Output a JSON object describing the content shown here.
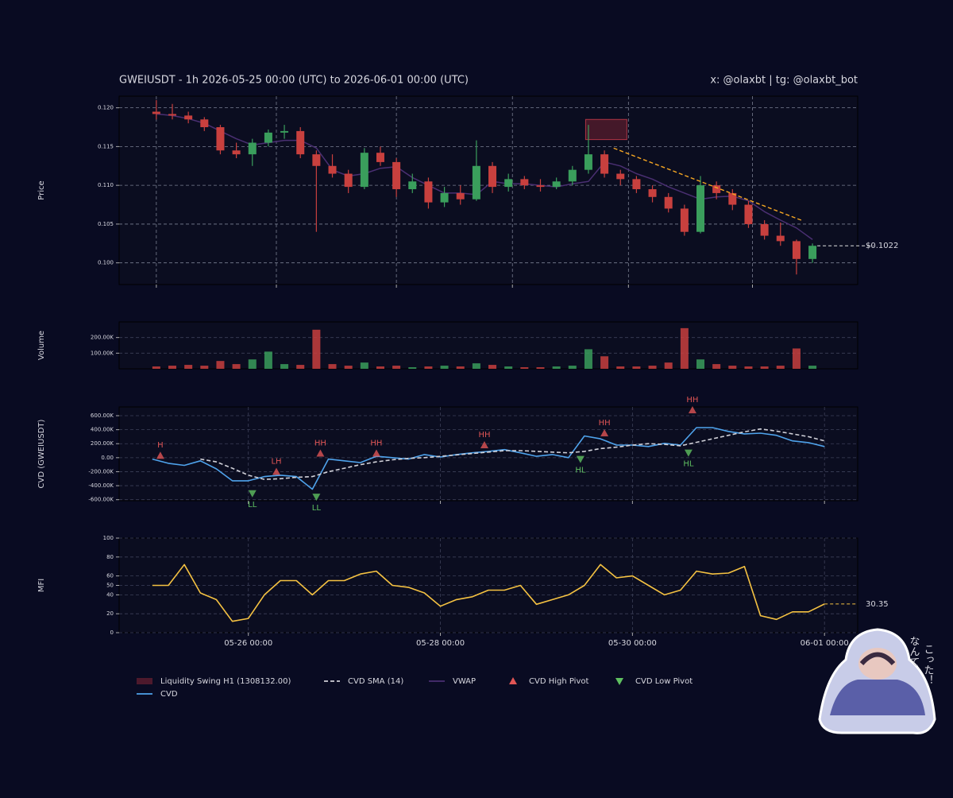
{
  "title": "GWEIUSDT - 1h 2026-05-25 00:00 (UTC) to 2026-06-01 00:00 (UTC)",
  "handle": "x: @olaxbt | tg: @olaxbt_bot",
  "sticker": {
    "lines": [
      "なんて",
      "こった！"
    ]
  },
  "chart_data": [
    {
      "type": "candlestick",
      "ylabel": "Price",
      "x": [
        1,
        5,
        9,
        13,
        17,
        21,
        25,
        29,
        33,
        37,
        41,
        45,
        49,
        53,
        57,
        61,
        65,
        69,
        73,
        77,
        81,
        85,
        89,
        93,
        97,
        101,
        105,
        109,
        113,
        117,
        121,
        125,
        129,
        133,
        137,
        141,
        145,
        149,
        153,
        157,
        161,
        165
      ],
      "open": [
        0.1195,
        0.1192,
        0.119,
        0.1185,
        0.1175,
        0.1145,
        0.114,
        0.1155,
        0.1168,
        0.117,
        0.114,
        0.1125,
        0.1115,
        0.1098,
        0.1142,
        0.113,
        0.1095,
        0.1105,
        0.1078,
        0.109,
        0.1082,
        0.1125,
        0.1098,
        0.1108,
        0.11,
        0.1098,
        0.1105,
        0.112,
        0.114,
        0.1115,
        0.1108,
        0.1095,
        0.1085,
        0.107,
        0.104,
        0.11,
        0.109,
        0.1075,
        0.105,
        0.1035,
        0.1028,
        0.1005
      ],
      "high": [
        0.121,
        0.1205,
        0.1195,
        0.1188,
        0.1178,
        0.1155,
        0.116,
        0.1172,
        0.1178,
        0.1175,
        0.1145,
        0.114,
        0.112,
        0.1148,
        0.115,
        0.1135,
        0.1115,
        0.111,
        0.1098,
        0.11,
        0.1158,
        0.113,
        0.1115,
        0.1112,
        0.1108,
        0.111,
        0.1125,
        0.1178,
        0.1145,
        0.112,
        0.1112,
        0.11,
        0.109,
        0.1075,
        0.1112,
        0.1105,
        0.1095,
        0.108,
        0.1055,
        0.1052,
        0.103,
        0.1025
      ],
      "low": [
        0.1185,
        0.1185,
        0.118,
        0.117,
        0.114,
        0.1135,
        0.1125,
        0.115,
        0.116,
        0.1135,
        0.104,
        0.111,
        0.109,
        0.1095,
        0.1125,
        0.1085,
        0.109,
        0.107,
        0.1072,
        0.1075,
        0.108,
        0.109,
        0.1092,
        0.1095,
        0.1092,
        0.1095,
        0.11,
        0.1115,
        0.111,
        0.11,
        0.109,
        0.1078,
        0.1065,
        0.1035,
        0.1038,
        0.1082,
        0.1068,
        0.1045,
        0.103,
        0.1022,
        0.0985,
        0.1
      ],
      "close": [
        0.1192,
        0.119,
        0.1185,
        0.1175,
        0.1145,
        0.114,
        0.1155,
        0.1168,
        0.117,
        0.114,
        0.1125,
        0.1115,
        0.1098,
        0.1142,
        0.113,
        0.1095,
        0.1105,
        0.1078,
        0.109,
        0.1082,
        0.1125,
        0.1098,
        0.1108,
        0.11,
        0.1098,
        0.1105,
        0.112,
        0.114,
        0.1115,
        0.1108,
        0.1095,
        0.1085,
        0.107,
        0.104,
        0.11,
        0.109,
        0.1075,
        0.105,
        0.1035,
        0.1028,
        0.1005,
        0.1022
      ],
      "up_color": "#3a9e5c",
      "down_color": "#c8403e",
      "series": [
        {
          "name": "VWAP",
          "color": "#4a2f72",
          "values": [
            0.1192,
            0.119,
            0.1186,
            0.118,
            0.117,
            0.116,
            0.1152,
            0.1155,
            0.1158,
            0.1158,
            0.1148,
            0.112,
            0.1112,
            0.1115,
            0.1122,
            0.1124,
            0.111,
            0.11,
            0.109,
            0.109,
            0.1088,
            0.1105,
            0.1102,
            0.1102,
            0.11,
            0.1098,
            0.1102,
            0.1105,
            0.113,
            0.1125,
            0.1115,
            0.1108,
            0.1098,
            0.109,
            0.1082,
            0.1085,
            0.1086,
            0.108,
            0.1066,
            0.1055,
            0.1045,
            0.103
          ]
        }
      ],
      "zone": {
        "name": "Liquidity Swing H1 (1308132.00)",
        "x": [
          108.3,
          118.6
        ],
        "y": [
          0.1159,
          0.1185
        ],
        "color": "#6b1f30"
      },
      "trendline": {
        "x": [
          115.3,
          162.7
        ],
        "y": [
          0.1148,
          0.1054
        ],
        "color": "#f5a623"
      },
      "last_price": {
        "value": 0.1022,
        "label": "$0.1022"
      },
      "xlim": [
        -8.3,
        176.3
      ],
      "ylim": [
        0.0972,
        0.1215
      ],
      "xticks": [
        1,
        31,
        61,
        90,
        119,
        150
      ],
      "xtick_labels": false,
      "yticks": [
        {
          "value": 0.1,
          "label": "0.100"
        },
        {
          "value": 0.105,
          "label": "0.105"
        },
        {
          "value": 0.11,
          "label": "0.110"
        },
        {
          "value": 0.115,
          "label": "0.115"
        },
        {
          "value": 0.12,
          "label": "0.120"
        }
      ],
      "grid": true
    },
    {
      "type": "bar",
      "ylabel": "Volume",
      "x": [
        1,
        5,
        9,
        13,
        17,
        21,
        25,
        29,
        33,
        37,
        41,
        45,
        49,
        53,
        57,
        61,
        65,
        69,
        73,
        77,
        81,
        85,
        89,
        93,
        97,
        101,
        105,
        109,
        113,
        117,
        121,
        125,
        129,
        133,
        137,
        141,
        145,
        149,
        153,
        157,
        161,
        165
      ],
      "values": [
        15000,
        20000,
        25000,
        20000,
        50000,
        30000,
        60000,
        110000,
        30000,
        25000,
        250000,
        30000,
        20000,
        40000,
        15000,
        20000,
        10000,
        15000,
        20000,
        15000,
        35000,
        25000,
        15000,
        10000,
        10000,
        15000,
        20000,
        125000,
        80000,
        15000,
        15000,
        20000,
        40000,
        260000,
        60000,
        30000,
        20000,
        15000,
        15000,
        20000,
        130000,
        20000
      ],
      "color_by": "candle direction",
      "xlim": [
        -8.3,
        176.3
      ],
      "ylim": [
        0,
        300000
      ],
      "yticks": [
        {
          "value": 100000,
          "label": "100.00K"
        },
        {
          "value": 200000,
          "label": "200.00K"
        }
      ],
      "grid": true
    },
    {
      "type": "line",
      "ylabel": "CVD (GWEIUSDT)",
      "x": [
        0,
        4,
        8,
        12,
        16,
        20,
        24,
        28,
        32,
        36,
        40,
        44,
        48,
        52,
        56,
        60,
        64,
        68,
        72,
        76,
        80,
        84,
        88,
        92,
        96,
        100,
        104,
        108,
        112,
        116,
        120,
        124,
        128,
        132,
        136,
        140,
        144,
        148,
        152,
        156,
        160,
        164,
        168
      ],
      "series": [
        {
          "name": "CVD",
          "color": "#4fa3ec",
          "values": [
            -20000,
            -80000,
            -110000,
            -45000,
            -160000,
            -330000,
            -330000,
            -270000,
            -250000,
            -270000,
            -450000,
            -20000,
            -45000,
            -70000,
            20000,
            0,
            -20000,
            45000,
            10000,
            45000,
            70000,
            90000,
            115000,
            70000,
            20000,
            45000,
            0,
            310000,
            270000,
            180000,
            180000,
            160000,
            205000,
            180000,
            430000,
            430000,
            375000,
            340000,
            350000,
            320000,
            240000,
            215000,
            160000
          ]
        },
        {
          "name": "CVD SMA (14)",
          "color": "#d0d0d8",
          "dashed": true,
          "values": [
            null,
            null,
            null,
            -20000,
            -60000,
            -150000,
            -250000,
            -310000,
            -300000,
            -280000,
            -270000,
            -200000,
            -150000,
            -100000,
            -60000,
            -30000,
            -10000,
            0,
            20000,
            40000,
            60000,
            80000,
            100000,
            100000,
            90000,
            80000,
            70000,
            90000,
            130000,
            150000,
            180000,
            200000,
            190000,
            170000,
            220000,
            270000,
            320000,
            370000,
            410000,
            380000,
            340000,
            300000,
            240000
          ]
        }
      ],
      "high_pivots": {
        "name": "CVD High Pivot",
        "color": "#e05555",
        "x": [
          2,
          31,
          42,
          56,
          83,
          113,
          135
        ],
        "values": [
          30000,
          -200000,
          60000,
          60000,
          180000,
          350000,
          680000
        ],
        "labels": [
          "H",
          "LH",
          "HH",
          "HH",
          "HH",
          "HH",
          "HH"
        ]
      },
      "low_pivots": {
        "name": "CVD Low Pivot",
        "color": "#5fc060",
        "x": [
          25,
          41,
          107,
          134
        ],
        "values": [
          -510000,
          -560000,
          -20000,
          70000
        ],
        "labels": [
          "LL",
          "LL",
          "HL",
          "HL"
        ]
      },
      "xlim": [
        -8.3,
        176.3
      ],
      "ylim": [
        -615000,
        725000
      ],
      "xticks": [
        24,
        72,
        120,
        168
      ],
      "xtick_labels": false,
      "yticks": [
        {
          "value": -600000,
          "label": "-600.00K"
        },
        {
          "value": -400000,
          "label": "-400.00K"
        },
        {
          "value": -200000,
          "label": "-200.00K"
        },
        {
          "value": 0,
          "label": "0.00"
        },
        {
          "value": 200000,
          "label": "200.00K"
        },
        {
          "value": 400000,
          "label": "400.00K"
        },
        {
          "value": 600000,
          "label": "600.00K"
        }
      ],
      "grid": true
    },
    {
      "type": "line",
      "ylabel": "MFI",
      "x": [
        0,
        4,
        8,
        12,
        16,
        20,
        24,
        28,
        32,
        36,
        40,
        44,
        48,
        52,
        56,
        60,
        64,
        68,
        72,
        76,
        80,
        84,
        88,
        92,
        96,
        100,
        104,
        108,
        112,
        116,
        120,
        124,
        128,
        132,
        136,
        140,
        144,
        148,
        152,
        156,
        160,
        164,
        168
      ],
      "series": [
        {
          "color": "#f5c242",
          "values": [
            50,
            50,
            72,
            42,
            35,
            12,
            15,
            40,
            55,
            55,
            40,
            55,
            55,
            62,
            65,
            50,
            48,
            42,
            28,
            35,
            38,
            45,
            45,
            50,
            30,
            35,
            40,
            50,
            72,
            58,
            60,
            50,
            40,
            45,
            65,
            62,
            63,
            70,
            18,
            14,
            22,
            22,
            30.35
          ]
        }
      ],
      "last_value": 30.35,
      "xlim": [
        -8.3,
        176.3
      ],
      "ylim": [
        0,
        100
      ],
      "xticks": [
        {
          "value": 24,
          "label": "05-26 00:00"
        },
        {
          "value": 72,
          "label": "05-28 00:00"
        },
        {
          "value": 120,
          "label": "05-30 00:00"
        },
        {
          "value": 168,
          "label": "06-01 00:00"
        }
      ],
      "yticks": [
        0,
        20,
        40,
        50,
        60,
        80,
        100
      ],
      "grid": true
    }
  ]
}
